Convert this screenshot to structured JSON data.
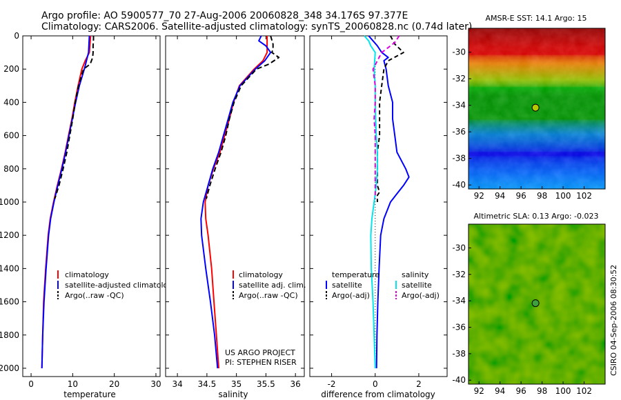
{
  "header": {
    "line1": "Argo profile: AO 5900577_70 27-Aug-2006 20060828_348 34.176S 97.377E",
    "line2": "Climatology: CARS2006. Satellite-adjusted climatology: synTS_20060828.nc (0.74d later)"
  },
  "side_note": "CSIRO 04-Sep-2006 08:30:52",
  "project": {
    "line1": "US ARGO PROJECT",
    "line2": "PI: STEPHEN RISER"
  },
  "colors": {
    "climatology": "#ff0000",
    "satellite": "#0000ff",
    "argo": "#000000",
    "sat_salinity": "#00e5ee",
    "argo_salinity_adj": "#e000e0"
  },
  "chart_data": [
    {
      "type": "line",
      "xlabel": "temperature",
      "xlim": [
        -2,
        31
      ],
      "ylim": [
        2050,
        0
      ],
      "xticks": [
        0,
        10,
        20,
        30
      ],
      "yticks": [
        0,
        200,
        400,
        600,
        800,
        1000,
        1200,
        1400,
        1600,
        1800,
        2000
      ],
      "legend": [
        "climatology",
        "satellite-adjusted climatology",
        "Argo(..raw -QC)"
      ],
      "series": [
        {
          "name": "climatology",
          "color": "#ff0000",
          "dash": "",
          "depth": [
            0,
            100,
            150,
            200,
            300,
            400,
            500,
            600,
            700,
            800,
            900,
            1000,
            1100,
            1200,
            1400,
            1600,
            1800,
            2000
          ],
          "values": [
            14.3,
            14.0,
            13.0,
            12.2,
            11.3,
            10.5,
            9.8,
            9.0,
            8.2,
            7.3,
            6.3,
            5.4,
            4.6,
            4.1,
            3.5,
            3.0,
            2.8,
            2.6
          ]
        },
        {
          "name": "satellite-adjusted climatology",
          "color": "#0000ff",
          "dash": "",
          "depth": [
            0,
            50,
            100,
            150,
            200,
            300,
            400,
            500,
            600,
            700,
            800,
            900,
            1000,
            1100,
            1200,
            1400,
            1600,
            1800,
            2000
          ],
          "values": [
            14.0,
            13.9,
            13.8,
            13.3,
            12.8,
            11.6,
            10.7,
            9.9,
            9.1,
            8.3,
            7.4,
            6.4,
            5.5,
            4.7,
            4.2,
            3.6,
            3.1,
            2.8,
            2.6
          ]
        },
        {
          "name": "Argo(..raw -QC)",
          "color": "#000000",
          "dash": "7,4",
          "depth": [
            0,
            20,
            60,
            100,
            130,
            170,
            200,
            300,
            400,
            500,
            600,
            700,
            800,
            900,
            980
          ],
          "values": [
            15.0,
            15.0,
            14.9,
            14.9,
            14.8,
            14.2,
            12.6,
            11.4,
            10.6,
            10.0,
            9.3,
            8.6,
            7.7,
            6.7,
            5.7
          ]
        }
      ]
    },
    {
      "type": "line",
      "xlabel": "salinity",
      "xlim": [
        33.8,
        36.15
      ],
      "ylim": [
        2050,
        0
      ],
      "xticks": [
        34,
        34.5,
        35,
        35.5,
        36
      ],
      "legend": [
        "climatology",
        "satellite adj. clim.",
        "Argo(..raw -QC)"
      ],
      "series": [
        {
          "name": "climatology",
          "color": "#ff0000",
          "dash": "",
          "depth": [
            0,
            100,
            150,
            200,
            300,
            400,
            500,
            600,
            700,
            800,
            900,
            1000,
            1100,
            1200,
            1400,
            1600,
            1800,
            2000
          ],
          "values": [
            35.52,
            35.52,
            35.45,
            35.3,
            35.05,
            34.95,
            34.88,
            34.8,
            34.72,
            34.61,
            34.52,
            34.47,
            34.48,
            34.52,
            34.58,
            34.62,
            34.66,
            34.7
          ]
        },
        {
          "name": "satellite adj. clim.",
          "color": "#0000ff",
          "dash": "",
          "depth": [
            0,
            30,
            60,
            100,
            150,
            200,
            300,
            400,
            500,
            600,
            700,
            800,
            900,
            1000,
            1100,
            1200,
            1400,
            1600,
            1800,
            2000
          ],
          "values": [
            35.42,
            35.38,
            35.5,
            35.58,
            35.48,
            35.32,
            35.06,
            34.94,
            34.86,
            34.78,
            34.7,
            34.6,
            34.52,
            34.44,
            34.4,
            34.41,
            34.48,
            34.56,
            34.63,
            34.68
          ]
        },
        {
          "name": "Argo(..raw -QC)",
          "color": "#000000",
          "dash": "7,4",
          "depth": [
            0,
            50,
            80,
            100,
            130,
            170,
            200,
            300,
            400,
            500,
            600,
            700,
            800,
            900,
            980
          ],
          "values": [
            35.58,
            35.62,
            35.62,
            35.6,
            35.72,
            35.55,
            35.34,
            35.08,
            34.96,
            34.88,
            34.82,
            34.74,
            34.64,
            34.55,
            34.49
          ]
        }
      ]
    },
    {
      "type": "line",
      "xlabel": "difference from climatology",
      "xlim": [
        -3,
        3.3
      ],
      "ylim": [
        2050,
        0
      ],
      "xticks": [
        -2,
        0,
        2
      ],
      "legend_left_title": "temperature",
      "legend_right_title": "salinity",
      "legend": [
        "satellite",
        "Argo(-adj)",
        "satellite",
        "Argo(-adj)"
      ],
      "series": [
        {
          "name": "satellite",
          "color": "#0000ff",
          "dash": "",
          "depth": [
            0,
            30,
            60,
            100,
            130,
            150,
            200,
            300,
            400,
            500,
            600,
            700,
            800,
            850,
            900,
            950,
            1000,
            1100,
            1200,
            1400,
            1600,
            1800,
            2000
          ],
          "values": [
            -0.3,
            -0.1,
            0.1,
            0.3,
            0.6,
            0.4,
            0.5,
            0.6,
            0.8,
            0.8,
            0.9,
            1.0,
            1.4,
            1.55,
            1.3,
            1.0,
            0.7,
            0.4,
            0.25,
            0.18,
            0.12,
            0.08,
            0.06
          ]
        },
        {
          "name": "Argo(-adj)",
          "color": "#000000",
          "dash": "6,4",
          "depth": [
            0,
            50,
            100,
            150,
            200,
            300,
            400,
            500,
            600,
            700,
            800,
            900,
            940,
            960,
            980,
            1000
          ],
          "values": [
            0.7,
            0.9,
            1.3,
            0.6,
            0.4,
            0.3,
            0.2,
            0.2,
            0.2,
            0.1,
            0.1,
            0.1,
            0.2,
            0.1,
            0.1,
            0.1
          ]
        },
        {
          "name": "satellite",
          "color": "#00e5ee",
          "dash": "",
          "depth": [
            0,
            30,
            60,
            100,
            200,
            300,
            400,
            500,
            600,
            700,
            800,
            900,
            1000,
            1100,
            1200,
            1400,
            1600,
            1800,
            2000
          ],
          "values": [
            -0.5,
            -0.3,
            -0.2,
            0.0,
            -0.05,
            0.0,
            0.0,
            0.02,
            0.05,
            0.1,
            0.1,
            0.05,
            -0.05,
            -0.15,
            -0.2,
            -0.18,
            -0.1,
            -0.05,
            0.0
          ]
        },
        {
          "name": "Argo(-adj)",
          "color": "#e000e0",
          "dash": "6,4",
          "depth": [
            0,
            40,
            80,
            100,
            150,
            200,
            300,
            400,
            500,
            600,
            700,
            800,
            900,
            980
          ],
          "values": [
            1.1,
            0.9,
            0.5,
            0.3,
            0.1,
            -0.1,
            0.0,
            0.0,
            -0.05,
            0.0,
            0.0,
            0.0,
            0.0,
            0.0
          ]
        }
      ]
    },
    {
      "type": "heatmap",
      "title": "AMSR-E SST: 14.1 Argo: 15",
      "xlim": [
        91,
        104
      ],
      "ylim": [
        -40.3,
        -28.2
      ],
      "xticks": [
        92,
        94,
        96,
        98,
        100,
        102
      ],
      "yticks": [
        -30,
        -32,
        -34,
        -36,
        -38,
        -40
      ],
      "marker": {
        "lon": 97.377,
        "lat": -34.176
      }
    },
    {
      "type": "heatmap",
      "title": "Altimetric SLA: 0.13 Argo: -0.023",
      "xlim": [
        91,
        104
      ],
      "ylim": [
        -40.3,
        -28.2
      ],
      "xticks": [
        92,
        94,
        96,
        98,
        100,
        102
      ],
      "yticks": [
        -30,
        -32,
        -34,
        -36,
        -38,
        -40
      ],
      "marker": {
        "lon": 97.377,
        "lat": -34.176
      }
    }
  ]
}
